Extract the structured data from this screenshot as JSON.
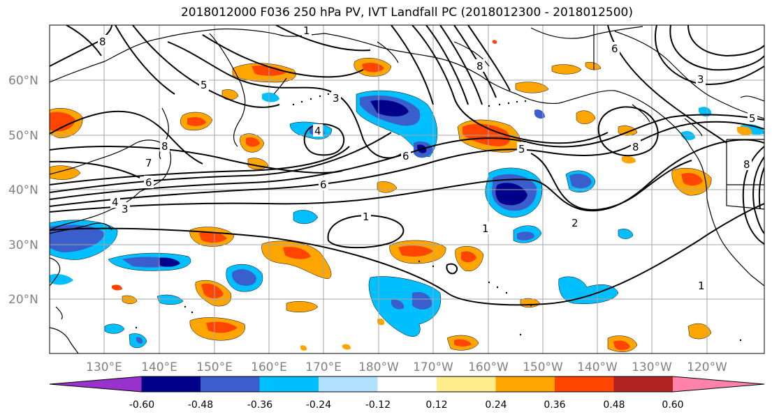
{
  "title": "2018012000 F036 250 hPa PV, IVT Landfall PC (2018012300 - 2018012500)",
  "lat_labels": [
    "60°N",
    "50°N",
    "40°N",
    "30°N",
    "20°N"
  ],
  "lon_labels": [
    "130°E",
    "140°E",
    "150°E",
    "160°E",
    "170°E",
    "180°W",
    "170°W",
    "160°W",
    "150°W",
    "140°W",
    "130°W",
    "120°W"
  ],
  "contour_labels": [
    "1",
    "2",
    "3",
    "4",
    "5",
    "6",
    "7",
    "8"
  ],
  "colorbar": {
    "tick_labels": [
      "-0.60",
      "-0.48",
      "-0.36",
      "-0.24",
      "-0.12",
      "0.12",
      "0.24",
      "0.36",
      "0.48",
      "0.60"
    ],
    "colors": [
      "#9932CC",
      "#00008B",
      "#3A5FCD",
      "#00BFFF",
      "#B0E2FF",
      "#FFFFFF",
      "#FFEC8B",
      "#FFA500",
      "#FF4500",
      "#B22222",
      "#FF82AB"
    ]
  }
}
